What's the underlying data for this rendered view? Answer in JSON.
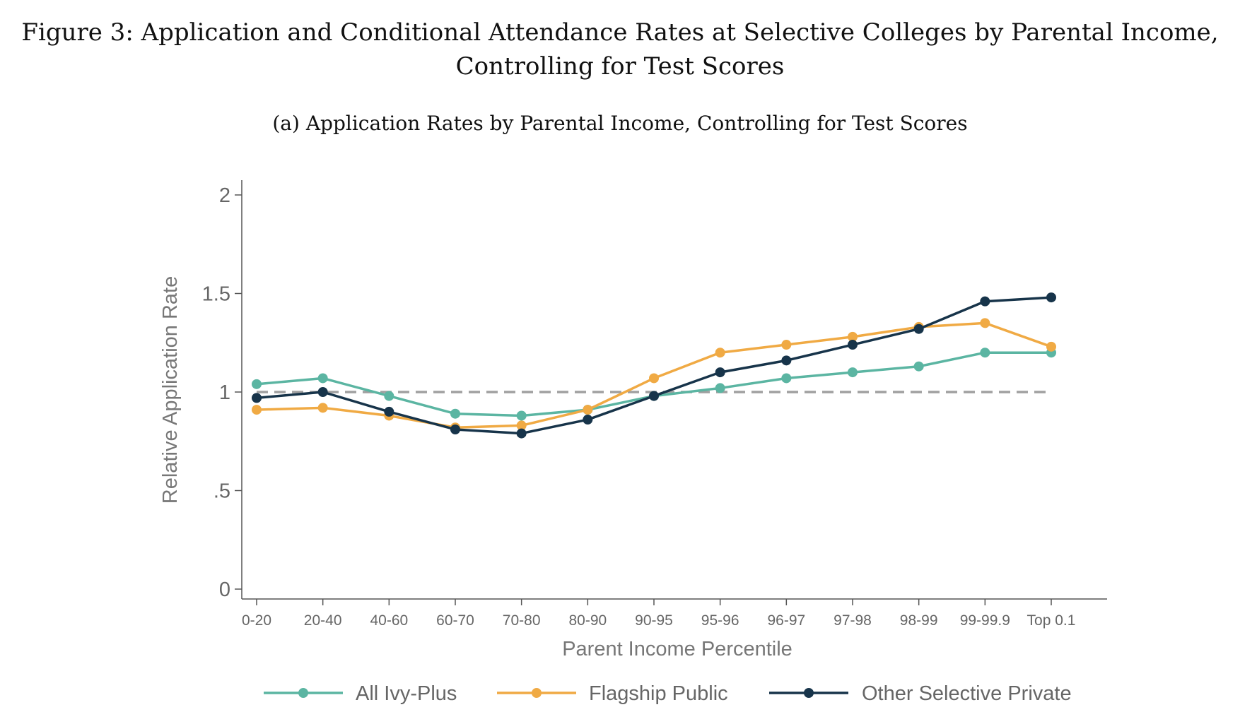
{
  "figure": {
    "title_line1": "Figure 3: Application and Conditional Attendance Rates at Selective Colleges by Parental Income,",
    "title_line2": "Controlling for Test Scores",
    "panel_title": "(a) Application Rates by Parental Income, Controlling for Test Scores"
  },
  "chart_data": {
    "type": "line",
    "xlabel": "Parent Income Percentile",
    "ylabel": "Relative Application Rate",
    "categories": [
      "0-20",
      "20-40",
      "40-60",
      "60-70",
      "70-80",
      "80-90",
      "90-95",
      "95-96",
      "96-97",
      "97-98",
      "98-99",
      "99-99.9",
      "Top 0.1"
    ],
    "ylim": [
      0,
      2
    ],
    "yticks": [
      0,
      0.5,
      1,
      1.5,
      2
    ],
    "ytick_labels": [
      "0",
      ".5",
      "1",
      "1.5",
      "2"
    ],
    "reference_line": {
      "y": 1,
      "style": "dashed",
      "color": "#a0a0a0"
    },
    "grid": false,
    "legend_position": "bottom",
    "series": [
      {
        "name": "All Ivy-Plus",
        "color": "#5bb5a2",
        "values": [
          1.04,
          1.07,
          0.98,
          0.89,
          0.88,
          0.91,
          0.98,
          1.02,
          1.07,
          1.1,
          1.13,
          1.2,
          1.2
        ]
      },
      {
        "name": "Flagship Public",
        "color": "#f0aa44",
        "values": [
          0.91,
          0.92,
          0.88,
          0.82,
          0.83,
          0.91,
          1.07,
          1.2,
          1.24,
          1.28,
          1.33,
          1.35,
          1.23
        ]
      },
      {
        "name": "Other Selective Private",
        "color": "#17344a",
        "values": [
          0.97,
          1.0,
          0.9,
          0.81,
          0.79,
          0.86,
          0.98,
          1.1,
          1.16,
          1.24,
          1.32,
          1.46,
          1.48
        ]
      }
    ]
  }
}
